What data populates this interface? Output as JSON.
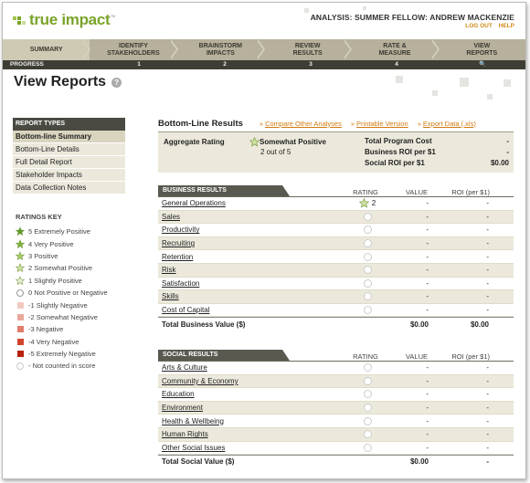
{
  "header": {
    "logo_text": "true impact",
    "logo_tm": "™",
    "analysis": "ANALYSIS: SUMMER FELLOW: ANDREW MACKENZIE",
    "logout": "LOG OUT",
    "help": "HELP"
  },
  "nav": {
    "steps": [
      {
        "label1": "SUMMARY",
        "label2": ""
      },
      {
        "label1": "IDENTIFY",
        "label2": "STAKEHOLDERS"
      },
      {
        "label1": "BRAINSTORM",
        "label2": "IMPACTS"
      },
      {
        "label1": "REVIEW",
        "label2": "RESULTS"
      },
      {
        "label1": "RATE &",
        "label2": "MEASURE"
      },
      {
        "label1": "VIEW",
        "label2": "REPORTS"
      }
    ],
    "progress": [
      "PROGRESS",
      "1",
      "2",
      "3",
      "4",
      "🔍"
    ]
  },
  "page_title": "View Reports",
  "help_icon": "?",
  "sidebar": {
    "heading": "REPORT TYPES",
    "items": [
      "Bottom-line Summary",
      "Bottom-Line Details",
      "Full Detail Report",
      "Stakeholder Impacts",
      "Data Collection Notes"
    ]
  },
  "ratings_key": {
    "title": "RATINGS KEY",
    "items": [
      {
        "label": "5 Extremely Positive",
        "icon": "star-icon",
        "color": "#5a9a2a"
      },
      {
        "label": "4 Very Positive",
        "icon": "star-icon",
        "color": "#7db33e"
      },
      {
        "label": "3 Positive",
        "icon": "star-icon",
        "color": "#a8cb6a"
      },
      {
        "label": "2 Somewhat Positive",
        "icon": "star-icon",
        "color": "#cfe2a2"
      },
      {
        "label": "1 Slightly Positive",
        "icon": "star-icon",
        "color": "#ebf2d9"
      },
      {
        "label": "0 Not Positive or Negative",
        "icon": "circle-icon",
        "color": "#ffffff"
      },
      {
        "label": "-1 Slightly Negative",
        "icon": "square-icon",
        "color": "#f2c9c2"
      },
      {
        "label": "-2 Somewhat Negative",
        "icon": "square-icon",
        "color": "#eaa89c"
      },
      {
        "label": "-3 Negative",
        "icon": "square-icon",
        "color": "#e17d6b"
      },
      {
        "label": "-4 Very Negative",
        "icon": "square-icon",
        "color": "#d1442c"
      },
      {
        "label": "-5 Extremely Negative",
        "icon": "square-icon",
        "color": "#b8220c"
      },
      {
        "label": "- Not counted in score",
        "icon": "circle-icon-light",
        "color": "#ffffff"
      }
    ]
  },
  "main": {
    "title": "Bottom-Line Results",
    "links": [
      "Compare Other Analyses",
      "Printable Version",
      "Export Data (.xls)"
    ],
    "aggregate": {
      "label": "Aggregate Rating",
      "rating_text": "Somewhat Positive",
      "count": "2 out of 5",
      "rows": [
        {
          "label": "Total Program Cost",
          "value": "-"
        },
        {
          "label": "Business ROI per $1",
          "value": "-"
        },
        {
          "label": "Social ROI per $1",
          "value": "$0.00"
        }
      ]
    },
    "columns": {
      "rating": "RATING",
      "value": "VALUE",
      "roi": "ROI (per $1)"
    },
    "business": {
      "heading": "BUSINESS RESULTS",
      "rows": [
        {
          "name": "General Operations",
          "rating": "2",
          "value": "-",
          "roi": "-"
        },
        {
          "name": "Sales",
          "rating": "",
          "value": "-",
          "roi": "-"
        },
        {
          "name": "Productivity",
          "rating": "",
          "value": "-",
          "roi": "-"
        },
        {
          "name": "Recruiting",
          "rating": "",
          "value": "-",
          "roi": "-"
        },
        {
          "name": "Retention",
          "rating": "",
          "value": "-",
          "roi": "-"
        },
        {
          "name": "Risk",
          "rating": "",
          "value": "-",
          "roi": "-"
        },
        {
          "name": "Satisfaction",
          "rating": "",
          "value": "-",
          "roi": "-"
        },
        {
          "name": "Skills",
          "rating": "",
          "value": "-",
          "roi": "-"
        },
        {
          "name": "Cost of Capital",
          "rating": "",
          "value": "-",
          "roi": "-"
        }
      ],
      "total_label": "Total Business Value ($)",
      "total_value": "$0.00",
      "total_roi": "$0.00"
    },
    "social": {
      "heading": "SOCIAL RESULTS",
      "rows": [
        {
          "name": "Arts & Culture",
          "rating": "",
          "value": "-",
          "roi": "-"
        },
        {
          "name": "Community & Economy",
          "rating": "",
          "value": "-",
          "roi": "-"
        },
        {
          "name": "Education",
          "rating": "",
          "value": "-",
          "roi": "-"
        },
        {
          "name": "Environment",
          "rating": "",
          "value": "-",
          "roi": "-"
        },
        {
          "name": "Health & Wellbeing",
          "rating": "",
          "value": "-",
          "roi": "-"
        },
        {
          "name": "Human Rights",
          "rating": "",
          "value": "-",
          "roi": "-"
        },
        {
          "name": "Other Social Issues",
          "rating": "",
          "value": "-",
          "roi": "-"
        }
      ],
      "total_label": "Total Social Value ($)",
      "total_value": "$0.00",
      "total_roi": "-"
    }
  },
  "colors": {
    "accent": "#d07a10",
    "brand_green": "#7aa428",
    "nav_bg": "#b6b09c",
    "dark": "#3f3e35"
  }
}
